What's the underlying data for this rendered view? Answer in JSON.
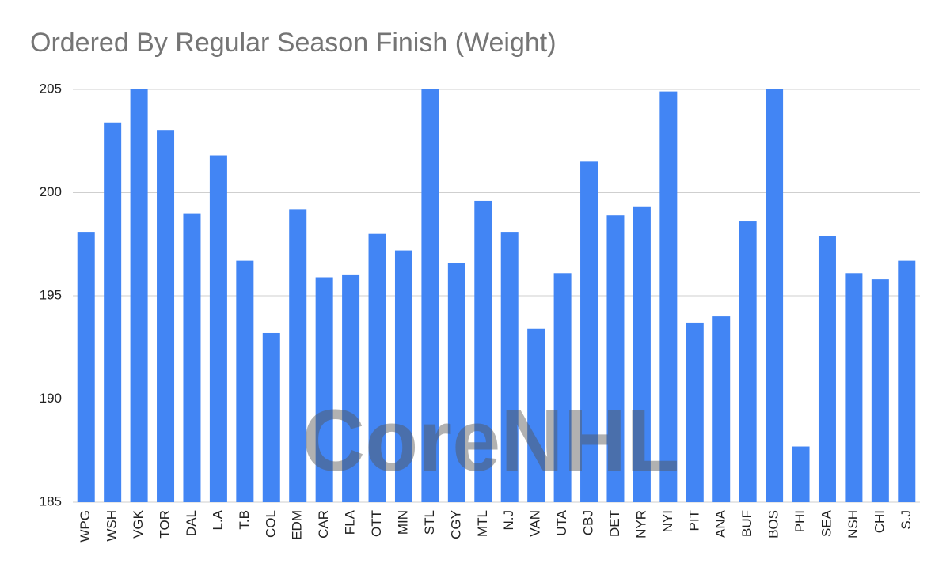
{
  "chart_data": {
    "type": "bar",
    "title": "Ordered By Regular Season Finish  (Weight)",
    "watermark": "CoreNHL",
    "categories": [
      "WPG",
      "WSH",
      "VGK",
      "TOR",
      "DAL",
      "L.A",
      "T.B",
      "COL",
      "EDM",
      "CAR",
      "FLA",
      "OTT",
      "MIN",
      "STL",
      "CGY",
      "MTL",
      "N.J",
      "VAN",
      "UTA",
      "CBJ",
      "DET",
      "NYR",
      "NYI",
      "PIT",
      "ANA",
      "BUF",
      "BOS",
      "PHI",
      "SEA",
      "NSH",
      "CHI",
      "S.J"
    ],
    "values": [
      198.1,
      203.4,
      205,
      203.0,
      199.0,
      201.8,
      196.7,
      193.2,
      199.2,
      195.9,
      196.0,
      198.0,
      197.2,
      205,
      196.6,
      199.6,
      198.1,
      193.4,
      196.1,
      201.5,
      198.9,
      199.3,
      204.9,
      193.7,
      194.0,
      198.6,
      205,
      187.7,
      197.9,
      196.1,
      195.8,
      196.7
    ],
    "color": "#4285f4",
    "ylim": [
      185,
      205
    ],
    "yticks": [
      185,
      190,
      195,
      200,
      205
    ],
    "grid": true
  }
}
